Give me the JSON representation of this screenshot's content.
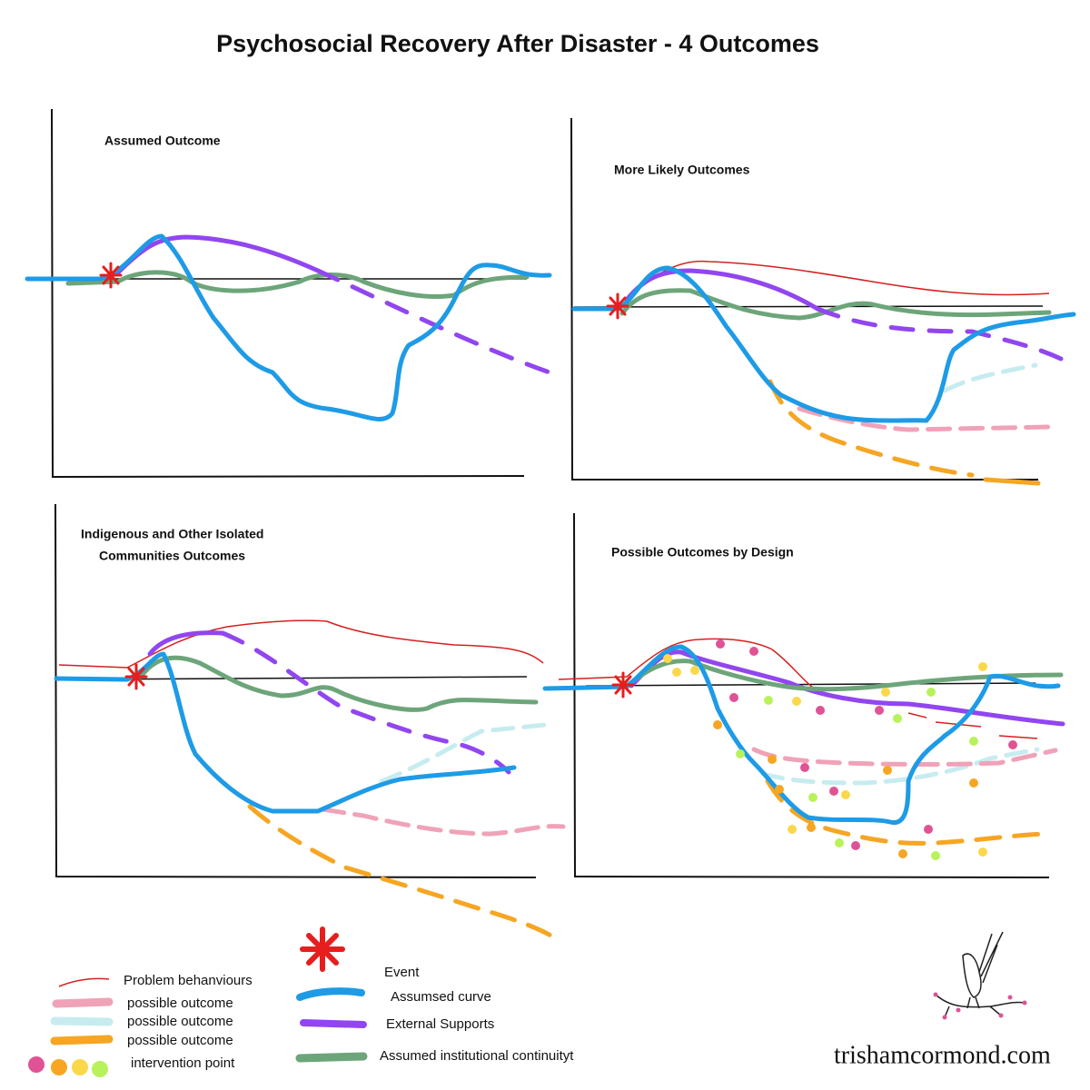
{
  "title": "Psychosocial Recovery After Disaster - 4 Outcomes",
  "panels": [
    {
      "title_lines": [
        "Assumed Outcome"
      ]
    },
    {
      "title_lines": [
        "More Likely Outcomes"
      ]
    },
    {
      "title_lines": [
        "Indigenous and Other Isolated",
        "Communities  Outcomes"
      ]
    },
    {
      "title_lines": [
        "Possible Outcomes by Design"
      ]
    }
  ],
  "legend_left": [
    "Problem behanviours",
    "possible outcome",
    "possible outcome",
    "possible outcome",
    "intervention point"
  ],
  "legend_right": [
    "Event",
    "Assumsed curve",
    "External Supports",
    "Assumed institutional continuityt"
  ],
  "credit": "trishamcormond.com"
}
